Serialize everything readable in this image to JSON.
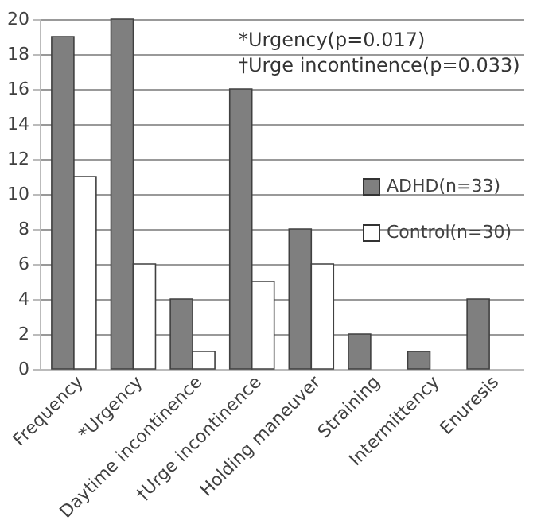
{
  "chart_data": {
    "type": "bar",
    "categories": [
      "Frequency",
      "*Urgency",
      "Daytime incontinence",
      "†Urge incontinence",
      "Holding maneuver",
      "Straining",
      "Intermittency",
      "Enuresis"
    ],
    "series": [
      {
        "name": "ADHD(n=33)",
        "color": "#7f7f7f",
        "values": [
          19,
          20,
          4,
          16,
          8,
          2,
          1,
          4
        ]
      },
      {
        "name": "Control(n=30)",
        "color": "#ffffff",
        "values": [
          11,
          6,
          1,
          5,
          6,
          0,
          0,
          0
        ]
      }
    ],
    "ylim": [
      0,
      20
    ],
    "yticks": [
      0,
      2,
      4,
      6,
      8,
      10,
      12,
      14,
      16,
      18,
      20
    ],
    "grid": "y",
    "legend": "right",
    "annotations": [
      "*Urgency(p=0.017)",
      "†Urge incontinence(p=0.033)"
    ]
  }
}
